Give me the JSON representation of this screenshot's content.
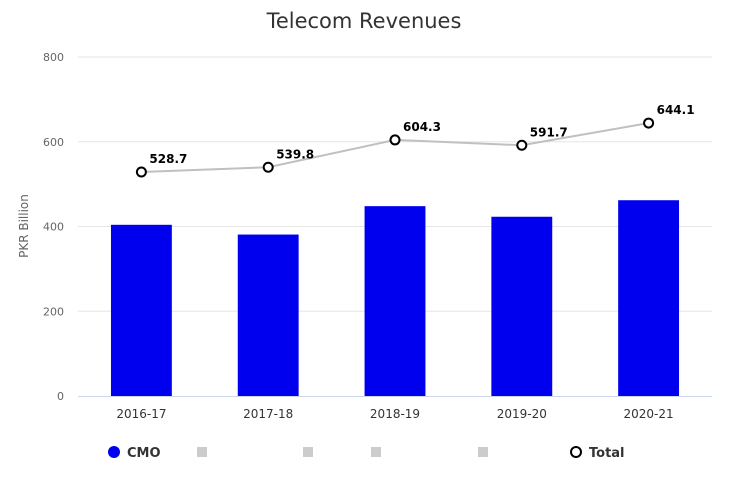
{
  "chart_data": {
    "type": "bar",
    "title": "Telecom Revenues",
    "ylabel": "PKR Billion",
    "xlabel": "",
    "ylim": [
      0,
      800
    ],
    "yticks": [
      0,
      200,
      400,
      600,
      800
    ],
    "categories": [
      "2016-17",
      "2017-18",
      "2018-19",
      "2019-20",
      "2020-21"
    ],
    "series": [
      {
        "name": "CMO",
        "type": "bar",
        "color": "#0000ee",
        "values": [
          404,
          381,
          448,
          423,
          462
        ]
      },
      {
        "name": "Total",
        "type": "line",
        "color": "#c0c0c0",
        "marker": "hollow-circle",
        "values": [
          528.7,
          539.8,
          604.3,
          591.7,
          644.1
        ],
        "labels": [
          "528.7",
          "539.8",
          "604.3",
          "591.7",
          "644.1"
        ]
      }
    ],
    "legend": {
      "placement": "bottom",
      "items": [
        {
          "name": "CMO",
          "symbol": "circle",
          "color": "#0000ee",
          "active": true
        },
        {
          "name": "",
          "symbol": "square",
          "color": "#cccccc",
          "active": false
        },
        {
          "name": "",
          "symbol": "square",
          "color": "#cccccc",
          "active": false
        },
        {
          "name": "",
          "symbol": "square",
          "color": "#cccccc",
          "active": false
        },
        {
          "name": "",
          "symbol": "square",
          "color": "#cccccc",
          "active": false
        },
        {
          "name": "Total",
          "symbol": "hollow-circle",
          "color": "#000000",
          "active": true
        }
      ]
    },
    "grid": true
  }
}
